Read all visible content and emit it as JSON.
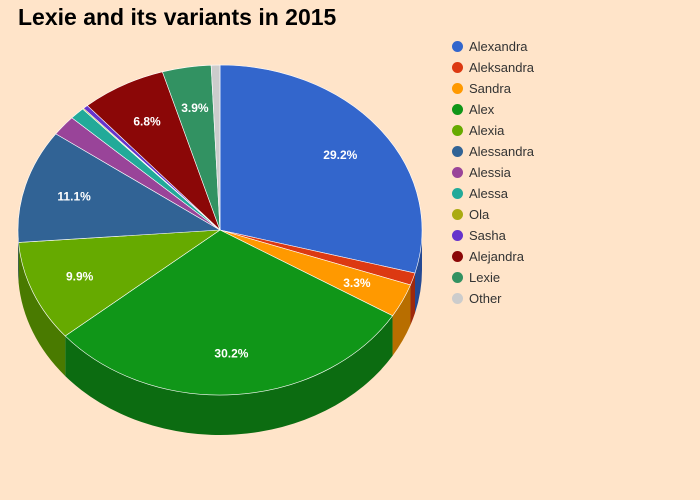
{
  "chart_data": {
    "type": "pie",
    "title": "Lexie and its variants in 2015",
    "legend_position": "right",
    "slices": [
      {
        "label": "Alexandra",
        "value": 29.2,
        "color": "#3366cc",
        "display": "29.2%"
      },
      {
        "label": "Aleksandra",
        "value": 1.2,
        "color": "#dc3912",
        "display": ""
      },
      {
        "label": "Sandra",
        "value": 3.3,
        "color": "#ff9900",
        "display": "3.3%"
      },
      {
        "label": "Alex",
        "value": 30.2,
        "color": "#109618",
        "display": "30.2%"
      },
      {
        "label": "Alexia",
        "value": 9.9,
        "color": "#66aa00",
        "display": "9.9%"
      },
      {
        "label": "Alessandra",
        "value": 11.1,
        "color": "#316395",
        "display": "11.1%"
      },
      {
        "label": "Alessia",
        "value": 2.0,
        "color": "#994499",
        "display": ""
      },
      {
        "label": "Alessa",
        "value": 1.2,
        "color": "#22aa99",
        "display": ""
      },
      {
        "label": "Ola",
        "value": 0.1,
        "color": "#aaaa11",
        "display": ""
      },
      {
        "label": "Sasha",
        "value": 0.4,
        "color": "#6633cc",
        "display": ""
      },
      {
        "label": "Alejandra",
        "value": 6.8,
        "color": "#8b0707",
        "display": "6.8%"
      },
      {
        "label": "Lexie",
        "value": 3.9,
        "color": "#329262",
        "display": "3.9%"
      },
      {
        "label": "Other",
        "value": 0.7,
        "color": "#cccccc",
        "display": ""
      }
    ]
  }
}
